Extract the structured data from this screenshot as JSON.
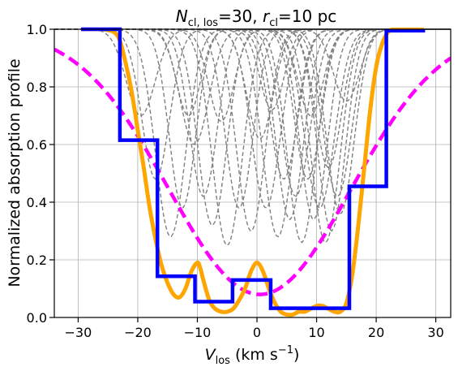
{
  "chart_data": {
    "type": "line",
    "title": {
      "prefix_sym": "N",
      "prefix_sub": "cl, los",
      "prefix_val": "=30, ",
      "second_sym": "r",
      "second_sub": "cl",
      "second_val": "=10 pc"
    },
    "xlabel": {
      "sym": "V",
      "sub": "los",
      "unit_open": " (km s",
      "unit_exp": "−1",
      "unit_close": ")"
    },
    "ylabel": "Normalized absorption profile",
    "xlim": [
      -34,
      32.5
    ],
    "ylim": [
      0,
      1.0
    ],
    "xticks": [
      -30,
      -20,
      -10,
      0,
      10,
      20,
      30
    ],
    "xtick_labels": [
      "−30",
      "−20",
      "−10",
      "0",
      "10",
      "20",
      "30"
    ],
    "yticks": [
      0.0,
      0.2,
      0.4,
      0.6,
      0.8,
      1.0
    ],
    "ytick_labels": [
      "0.0",
      "0.2",
      "0.4",
      "0.6",
      "0.8",
      "1.0"
    ],
    "grid": true,
    "colors": {
      "orange": "#FFA500",
      "blue": "#0000FF",
      "magenta": "#FF00FF",
      "gray": "#808080",
      "grid": "#b0b0b0"
    },
    "series": [
      {
        "style": "gray-dashed-components",
        "components": [
          {
            "center": -19.5,
            "depth": 0.3,
            "width": 2.4
          },
          {
            "center": -17.0,
            "depth": 0.52,
            "width": 2.3
          },
          {
            "center": -14.5,
            "depth": 0.72,
            "width": 2.5
          },
          {
            "center": -12.5,
            "depth": 0.62,
            "width": 2.2
          },
          {
            "center": -10.5,
            "depth": 0.4,
            "width": 2.4
          },
          {
            "center": -9.0,
            "depth": 0.58,
            "width": 2.3
          },
          {
            "center": -7.5,
            "depth": 0.68,
            "width": 2.4
          },
          {
            "center": -5.0,
            "depth": 0.75,
            "width": 2.5
          },
          {
            "center": -3.0,
            "depth": 0.62,
            "width": 2.3
          },
          {
            "center": -1.0,
            "depth": 0.7,
            "width": 2.4
          },
          {
            "center": 0.5,
            "depth": 0.38,
            "width": 2.2
          },
          {
            "center": 1.5,
            "depth": 0.62,
            "width": 2.4
          },
          {
            "center": 3.5,
            "depth": 0.72,
            "width": 2.5
          },
          {
            "center": 4.5,
            "depth": 0.52,
            "width": 2.3
          },
          {
            "center": 5.5,
            "depth": 0.66,
            "width": 2.3
          },
          {
            "center": 6.5,
            "depth": 0.58,
            "width": 2.4
          },
          {
            "center": 7.5,
            "depth": 0.74,
            "width": 2.4
          },
          {
            "center": 8.5,
            "depth": 0.52,
            "width": 2.2
          },
          {
            "center": 9.5,
            "depth": 0.66,
            "width": 2.3
          },
          {
            "center": 10.5,
            "depth": 0.62,
            "width": 2.5
          },
          {
            "center": 11.5,
            "depth": 0.74,
            "width": 2.4
          },
          {
            "center": 12.0,
            "depth": 0.48,
            "width": 2.2
          },
          {
            "center": 12.5,
            "depth": 0.7,
            "width": 2.3
          },
          {
            "center": 13.5,
            "depth": 0.58,
            "width": 2.4
          },
          {
            "center": 14.0,
            "depth": 0.64,
            "width": 2.3
          },
          {
            "center": 15.0,
            "depth": 0.25,
            "width": 2.2
          },
          {
            "center": -11.5,
            "depth": 0.3,
            "width": 2.0
          },
          {
            "center": 2.5,
            "depth": 0.28,
            "width": 2.0
          },
          {
            "center": 9.0,
            "depth": 0.3,
            "width": 2.1
          },
          {
            "center": -6.0,
            "depth": 0.32,
            "width": 2.1
          }
        ]
      },
      {
        "style": "orange-solid",
        "x": [
          -29.5,
          -26,
          -24,
          -23,
          -22,
          -21,
          -20,
          -19,
          -18,
          -17,
          -16,
          -15,
          -14,
          -13,
          -12,
          -11,
          -10,
          -9.5,
          -9,
          -8,
          -7,
          -6,
          -5,
          -4,
          -3,
          -2,
          -1,
          0,
          1,
          2,
          3,
          4,
          5,
          6,
          7,
          8,
          9,
          10,
          11,
          12,
          13,
          14,
          15,
          16,
          17,
          18,
          19,
          20,
          21,
          22,
          23,
          25,
          28
        ],
        "y": [
          1.0,
          1.0,
          0.99,
          0.96,
          0.88,
          0.78,
          0.65,
          0.52,
          0.38,
          0.27,
          0.18,
          0.12,
          0.08,
          0.07,
          0.1,
          0.16,
          0.19,
          0.17,
          0.13,
          0.06,
          0.03,
          0.02,
          0.02,
          0.03,
          0.06,
          0.1,
          0.16,
          0.19,
          0.16,
          0.1,
          0.05,
          0.02,
          0.01,
          0.01,
          0.02,
          0.02,
          0.03,
          0.04,
          0.04,
          0.03,
          0.02,
          0.02,
          0.05,
          0.15,
          0.32,
          0.52,
          0.72,
          0.87,
          0.95,
          0.99,
          1.0,
          1.0,
          1.0
        ]
      },
      {
        "style": "blue-step",
        "x": [
          -29.5,
          -23,
          -23,
          -16.7,
          -16.7,
          -10.4,
          -10.4,
          -4.1,
          -4.1,
          2.3,
          2.3,
          15.5,
          15.5,
          21.7,
          21.7,
          28.2
        ],
        "y": [
          1.0,
          1.0,
          0.615,
          0.615,
          0.143,
          0.143,
          0.055,
          0.055,
          0.13,
          0.13,
          0.032,
          0.032,
          0.455,
          0.455,
          0.995,
          0.995
        ]
      },
      {
        "style": "magenta-dashed",
        "center": 0.5,
        "depth": 0.92,
        "sigma": 15.2
      }
    ]
  }
}
